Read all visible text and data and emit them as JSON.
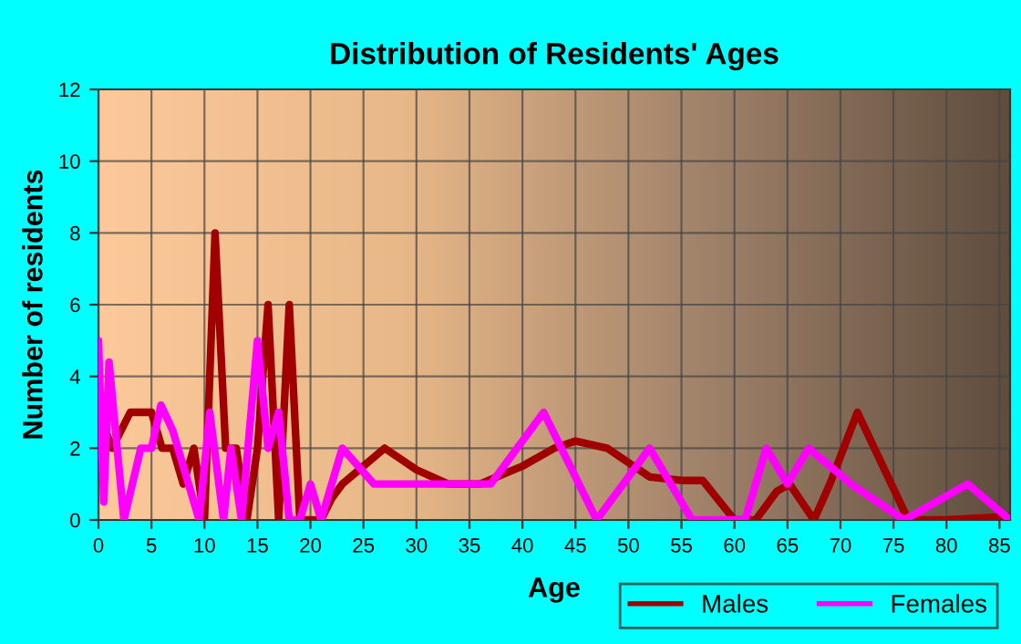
{
  "chart_data": {
    "type": "line",
    "title": "Distribution of Residents' Ages",
    "xlabel": "Age",
    "ylabel": "Number of residents",
    "xlim": [
      0,
      86
    ],
    "ylim": [
      0,
      12
    ],
    "xticks": [
      0,
      5,
      10,
      15,
      20,
      25,
      30,
      35,
      40,
      45,
      50,
      55,
      60,
      65,
      70,
      75,
      80,
      85
    ],
    "yticks": [
      0,
      2,
      4,
      6,
      8,
      10,
      12
    ],
    "grid": true,
    "legend": "bottom right",
    "series": [
      {
        "name": "Males",
        "color": "#a00000",
        "x": [
          0,
          1.3,
          3,
          4,
          5,
          6,
          7,
          8,
          9,
          10,
          11,
          12,
          13,
          14,
          15,
          16,
          17,
          18,
          19,
          20,
          21,
          22,
          23,
          25,
          27,
          30,
          33,
          36,
          40,
          43,
          45,
          48,
          52,
          55,
          57,
          60,
          62,
          64,
          65.2,
          67.5,
          69,
          71.6,
          74,
          76.4,
          80,
          86
        ],
        "values": [
          3,
          2,
          3,
          3,
          3,
          2,
          2,
          1,
          2,
          0,
          8,
          2,
          2,
          0,
          2,
          6,
          0,
          6,
          0,
          0,
          0,
          0.6,
          1,
          1.5,
          2,
          1.4,
          1,
          1,
          1.5,
          2,
          2.2,
          2,
          1.2,
          1.1,
          1.1,
          0,
          0,
          0.8,
          1,
          0,
          1,
          3,
          1.5,
          0,
          0,
          0.1
        ]
      },
      {
        "name": "Females",
        "color": "#ff00ff",
        "x": [
          0,
          0.5,
          1,
          2.4,
          4,
          5,
          5.9,
          7,
          8,
          9.5,
          10.5,
          11.8,
          12.5,
          13.5,
          15,
          16,
          17,
          18,
          19,
          20,
          21,
          23,
          26,
          30,
          33,
          37,
          42,
          47,
          52,
          56,
          61,
          63,
          65,
          67,
          71,
          76,
          82,
          86
        ],
        "values": [
          5,
          0.5,
          4.4,
          0,
          2,
          2,
          3.2,
          2.5,
          1.5,
          0,
          3,
          0,
          2,
          0,
          5,
          2,
          3,
          0,
          0,
          1,
          0,
          2,
          1,
          1,
          1,
          1,
          3,
          0,
          2,
          0,
          0,
          2,
          1,
          2,
          1,
          0,
          1,
          0
        ]
      }
    ]
  }
}
